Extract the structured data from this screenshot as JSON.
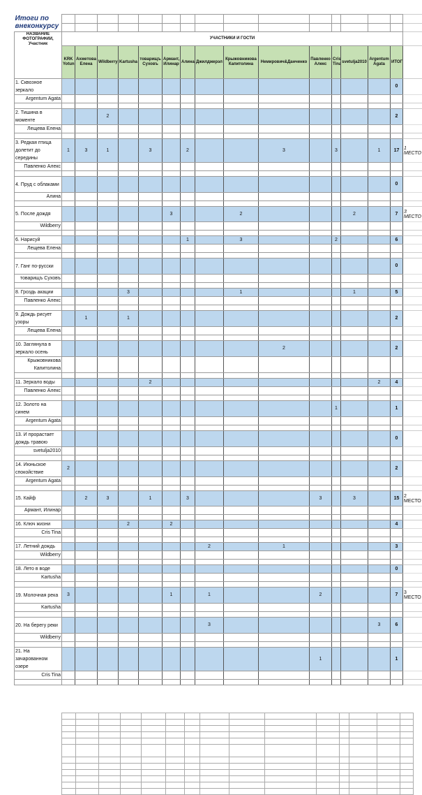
{
  "sheet_title": "Итоги по внеконкурсу",
  "header": {
    "photo_col": "НАЗВАНИЕ ФОТОГРАФИИ, Участник",
    "participants_group": "УЧАСТНИКИ И ГОСТИ",
    "columns": [
      "KRK Yotun",
      "Ахметова Елена",
      "Wildberry",
      "Kartusha",
      "товарищъ Суховъ",
      "Армант, Илинар",
      "Алина",
      "Джилджерэл",
      "Крыжовникова Капитолина",
      "Немирович&Данченко",
      "Павленко Алекс",
      "Cris Tina",
      "svetulja2010",
      "Argentum Agata"
    ],
    "total": "ИТОГ"
  },
  "colors": {
    "header_green": "#c6e0b4",
    "row_blue": "#bdd7ee",
    "title": "#1f3a7a"
  },
  "entries": [
    {
      "title": "1. Сквозное зеркало",
      "author": "Argentum Agata",
      "scores": [
        null,
        null,
        null,
        null,
        null,
        null,
        null,
        null,
        null,
        null,
        null,
        null,
        null,
        null
      ],
      "total": "0",
      "place": ""
    },
    {
      "title": "2. Тишина в моменте",
      "author": "Лещева Елена",
      "scores": [
        null,
        null,
        2,
        null,
        null,
        null,
        null,
        null,
        null,
        null,
        null,
        null,
        null,
        null
      ],
      "total": "2",
      "place": ""
    },
    {
      "title": "3. Редкая птица долетит до середины",
      "author": "Павленко Алекс",
      "scores": [
        1,
        3,
        1,
        null,
        3,
        null,
        2,
        null,
        null,
        3,
        null,
        3,
        null,
        1
      ],
      "total": "17",
      "place": "1 МЕСТО",
      "place_italic": true
    },
    {
      "title": "4. Пруд с облаками",
      "author": "Алина",
      "scores": [
        null,
        null,
        null,
        null,
        null,
        null,
        null,
        null,
        null,
        null,
        null,
        null,
        null,
        null
      ],
      "total": "0",
      "place": ""
    },
    {
      "title": "5. После дождя",
      "author": "Wildberry",
      "scores": [
        null,
        null,
        null,
        null,
        null,
        3,
        null,
        null,
        2,
        null,
        null,
        null,
        2,
        null
      ],
      "total": "7",
      "place": "3 МЕСТО",
      "place_italic": true,
      "tall": true
    },
    {
      "title": "6. Нарисуй",
      "author": "Лещева Елена",
      "scores": [
        null,
        null,
        null,
        null,
        null,
        null,
        1,
        null,
        3,
        null,
        null,
        2,
        null,
        null
      ],
      "total": "6",
      "place": ""
    },
    {
      "title": "7. Ганг по-русски",
      "author": "товарищъ Суховъ",
      "scores": [
        null,
        null,
        null,
        null,
        null,
        null,
        null,
        null,
        null,
        null,
        null,
        null,
        null,
        null
      ],
      "total": "0",
      "place": ""
    },
    {
      "title": "8. Гроздь акации",
      "author": "Павленко Алекс",
      "scores": [
        null,
        null,
        null,
        3,
        null,
        null,
        null,
        null,
        1,
        null,
        null,
        null,
        1,
        null
      ],
      "total": "5",
      "place": ""
    },
    {
      "title": "9. Дождь рисует узоры",
      "author": "Лещева Елена",
      "scores": [
        null,
        1,
        null,
        1,
        null,
        null,
        null,
        null,
        null,
        null,
        null,
        null,
        null,
        null
      ],
      "total": "2",
      "place": ""
    },
    {
      "title": "10. Заглянула в зеркало осень",
      "author": "Крыжовникова Капитолина",
      "scores": [
        null,
        null,
        null,
        null,
        null,
        null,
        null,
        null,
        null,
        2,
        null,
        null,
        null,
        null
      ],
      "total": "2",
      "place": ""
    },
    {
      "title": "11. Зеркало воды",
      "author": "Павленко Алекс",
      "scores": [
        null,
        null,
        null,
        null,
        2,
        null,
        null,
        null,
        null,
        null,
        null,
        null,
        null,
        2
      ],
      "total": "4",
      "place": ""
    },
    {
      "title": "12. Золото на синем",
      "author": "Argentum Agata",
      "scores": [
        null,
        null,
        null,
        null,
        null,
        null,
        null,
        null,
        null,
        null,
        null,
        1,
        null,
        null
      ],
      "total": "1",
      "place": ""
    },
    {
      "title": "13. И прорастает дождь травою",
      "author": "svetulja2010",
      "scores": [
        null,
        null,
        null,
        null,
        null,
        null,
        null,
        null,
        null,
        null,
        null,
        null,
        null,
        null
      ],
      "total": "0",
      "place": ""
    },
    {
      "title": "14. Июньское спокойствие",
      "author": "Argentum Agata",
      "scores": [
        2,
        null,
        null,
        null,
        null,
        null,
        null,
        null,
        null,
        null,
        null,
        null,
        null,
        null
      ],
      "total": "2",
      "place": ""
    },
    {
      "title": "15. Кайф",
      "author": "Армант, Илинар",
      "scores": [
        null,
        2,
        3,
        null,
        1,
        null,
        3,
        null,
        null,
        null,
        3,
        null,
        3,
        null
      ],
      "total": "15",
      "place": "2 МЕСТО",
      "tall": true
    },
    {
      "title": "16. Ключ жизни",
      "author": "Cris Tina",
      "scores": [
        null,
        null,
        null,
        2,
        null,
        2,
        null,
        null,
        null,
        null,
        null,
        null,
        null,
        null
      ],
      "total": "4",
      "place": ""
    },
    {
      "title": "17. Летний дождь",
      "author": "Wildberry",
      "scores": [
        null,
        null,
        null,
        null,
        null,
        null,
        null,
        2,
        null,
        1,
        null,
        null,
        null,
        null
      ],
      "total": "3",
      "place": ""
    },
    {
      "title": "18. Лето в воде",
      "author": "Kartusha",
      "scores": [
        null,
        null,
        null,
        null,
        null,
        null,
        null,
        null,
        null,
        null,
        null,
        null,
        null,
        null
      ],
      "total": "0",
      "place": ""
    },
    {
      "title": "19. Молочная река",
      "author": "Kartusha",
      "scores": [
        3,
        null,
        null,
        null,
        null,
        1,
        null,
        1,
        null,
        null,
        2,
        null,
        null,
        null
      ],
      "total": "7",
      "place": "3 МЕСТО"
    },
    {
      "title": "20. На берегу реки",
      "author": "Wildberry",
      "scores": [
        null,
        null,
        null,
        null,
        null,
        null,
        null,
        3,
        null,
        null,
        null,
        null,
        null,
        3
      ],
      "total": "6",
      "place": ""
    },
    {
      "title": "21. На зачарованном озере",
      "author": "Cris Tina",
      "scores": [
        null,
        null,
        null,
        null,
        null,
        null,
        null,
        null,
        null,
        null,
        1,
        null,
        null,
        null
      ],
      "total": "1",
      "place": ""
    }
  ]
}
